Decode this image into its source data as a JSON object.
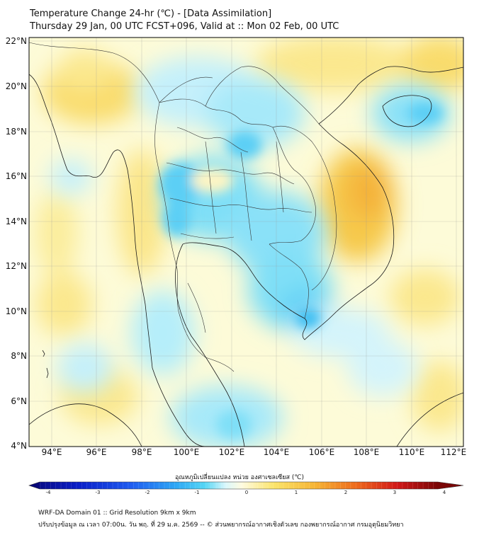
{
  "header": {
    "line1": "Temperature Change 24-hr (℃) - [Data Assimilation]",
    "line2": "Thursday 29 Jan, 00 UTC FCST+096, Valid at :: Mon 02 Feb, 00 UTC"
  },
  "map": {
    "lat_labels": [
      "22°N",
      "20°N",
      "18°N",
      "16°N",
      "14°N",
      "12°N",
      "10°N",
      "8°N",
      "6°N",
      "4°N"
    ],
    "lon_labels": [
      "94°E",
      "96°E",
      "98°E",
      "100°E",
      "102°E",
      "104°E",
      "106°E",
      "108°E",
      "110°E",
      "112°E"
    ],
    "lat_range": [
      4,
      22.2
    ],
    "lon_range": [
      93,
      112.3
    ]
  },
  "colorbar": {
    "title": "อุณหภูมิเปลี่ยนแปลง หน่วย องศาเซลเซียส (℃)",
    "ticks": [
      "-4",
      "-3",
      "-2",
      "-1",
      "0",
      "1",
      "2",
      "3",
      "4"
    ],
    "range": [
      -4,
      4
    ],
    "colors": [
      "#08087a",
      "#0a1ec8",
      "#1f5cf0",
      "#2ea8f5",
      "#55d6f5",
      "#b8f0fb",
      "#ffffff",
      "#fdf6b0",
      "#fbe46a",
      "#f6b434",
      "#ee6a1c",
      "#d21818",
      "#7a0606"
    ]
  },
  "footer": {
    "line1": "WRF-DA Domain 01 :: Grid Resolution 9km x 9km",
    "line2": "ปรับปรุงข้อมูล ณ เวลา 07:00น. วัน พฤ. ที่ 29 ม.ค. 2569 -- © ส่วนพยากรณ์อากาศเชิงตัวเลข กองพยากรณ์อากาศ กรมอุตุนิยมวิทยา"
  }
}
